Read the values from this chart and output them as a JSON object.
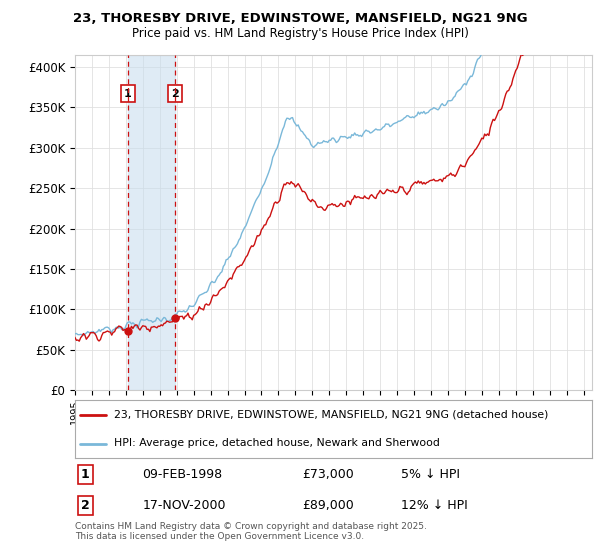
{
  "title_line1": "23, THORESBY DRIVE, EDWINSTOWE, MANSFIELD, NG21 9NG",
  "title_line2": "Price paid vs. HM Land Registry's House Price Index (HPI)",
  "ylabel_ticks": [
    "£0",
    "£50K",
    "£100K",
    "£150K",
    "£200K",
    "£250K",
    "£300K",
    "£350K",
    "£400K"
  ],
  "ytick_vals": [
    0,
    50000,
    100000,
    150000,
    200000,
    250000,
    300000,
    350000,
    400000
  ],
  "ylim": [
    0,
    415000
  ],
  "xlim_start": 1995.0,
  "xlim_end": 2025.5,
  "hpi_color": "#7ab8d9",
  "price_color": "#cc1111",
  "purchase1_date": "09-FEB-1998",
  "purchase1_price": 73000,
  "purchase1_hpi_pct": "5% ↓ HPI",
  "purchase1_x": 1998.1,
  "purchase2_date": "17-NOV-2000",
  "purchase2_price": 89000,
  "purchase2_x": 2000.88,
  "purchase2_hpi_pct": "12% ↓ HPI",
  "legend_house_label": "23, THORESBY DRIVE, EDWINSTOWE, MANSFIELD, NG21 9NG (detached house)",
  "legend_hpi_label": "HPI: Average price, detached house, Newark and Sherwood",
  "footer": "Contains HM Land Registry data © Crown copyright and database right 2025.\nThis data is licensed under the Open Government Licence v3.0.",
  "background_color": "#ffffff",
  "grid_color": "#e0e0e0",
  "span_color": "#c6dcee"
}
